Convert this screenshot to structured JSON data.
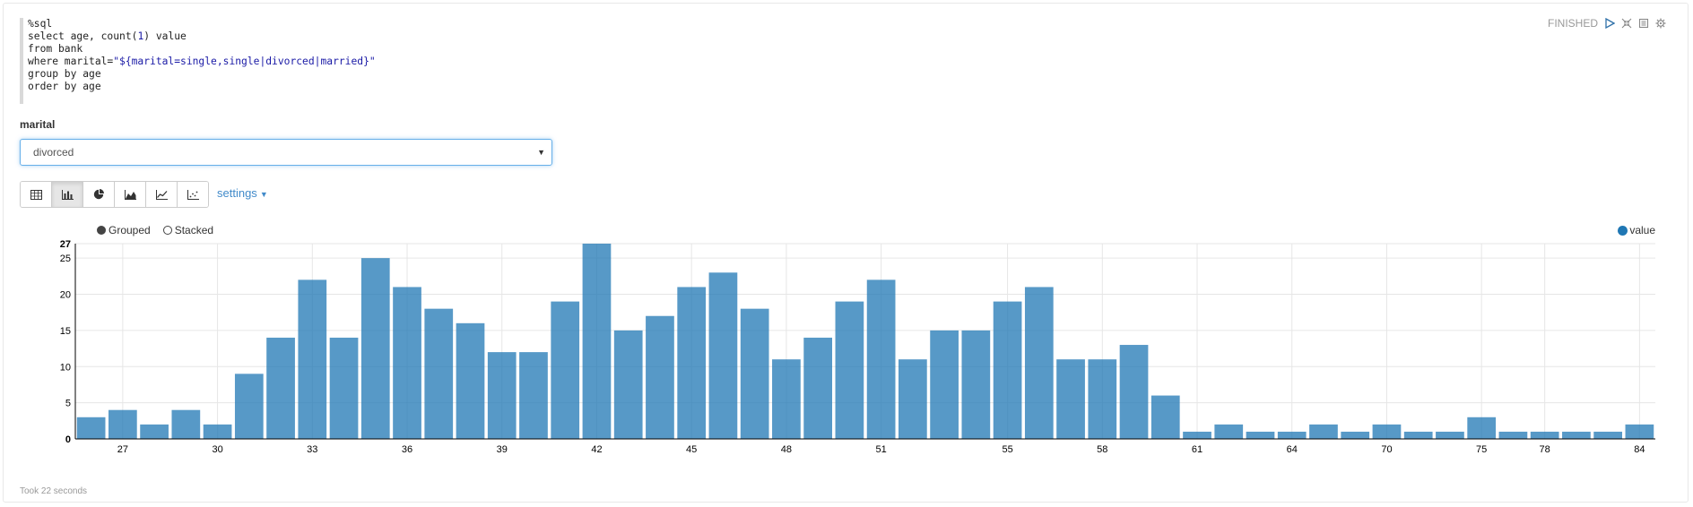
{
  "status": {
    "text": "FINISHED"
  },
  "editor": {
    "lines": [
      [
        {
          "t": "%sql",
          "c": ""
        }
      ],
      [
        {
          "t": "select age, count(",
          "c": ""
        },
        {
          "t": "1",
          "c": "code-num"
        },
        {
          "t": ") value",
          "c": ""
        }
      ],
      [
        {
          "t": "from bank",
          "c": ""
        }
      ],
      [
        {
          "t": "where marital=",
          "c": ""
        },
        {
          "t": "\"${marital=single,single|divorced|married}\"",
          "c": "code-str"
        }
      ],
      [
        {
          "t": "group by age",
          "c": ""
        }
      ],
      [
        {
          "t": "order by age",
          "c": ""
        }
      ]
    ]
  },
  "form": {
    "label": "marital",
    "selected": "divorced"
  },
  "toolbar": {
    "buttons": [
      {
        "name": "table-view-button",
        "icon": "table-icon"
      },
      {
        "name": "bar-chart-button",
        "icon": "bar-chart-icon",
        "active": true
      },
      {
        "name": "pie-chart-button",
        "icon": "pie-chart-icon"
      },
      {
        "name": "area-chart-button",
        "icon": "area-chart-icon"
      },
      {
        "name": "line-chart-button",
        "icon": "line-chart-icon"
      },
      {
        "name": "scatter-chart-button",
        "icon": "scatter-chart-icon"
      }
    ],
    "settings_label": "settings"
  },
  "legend": {
    "grouped": "Grouped",
    "stacked": "Stacked",
    "series": "value"
  },
  "footer": {
    "text": "Took 22 seconds"
  },
  "colors": {
    "bar": "#1f77b4",
    "accent": "#428bca"
  },
  "chart_data": {
    "type": "bar",
    "x": [
      26,
      27,
      28,
      29,
      30,
      31,
      32,
      33,
      34,
      35,
      36,
      37,
      38,
      39,
      40,
      41,
      42,
      43,
      44,
      45,
      46,
      47,
      48,
      49,
      50,
      51,
      52,
      53,
      54,
      55,
      56,
      57,
      58,
      59,
      60,
      61,
      62,
      63,
      64,
      65,
      68,
      70,
      72,
      73,
      75,
      77,
      78,
      80,
      82,
      84
    ],
    "values": [
      3,
      4,
      2,
      4,
      2,
      9,
      14,
      22,
      14,
      25,
      21,
      18,
      16,
      12,
      12,
      19,
      27,
      15,
      17,
      21,
      23,
      18,
      11,
      14,
      19,
      22,
      11,
      15,
      15,
      19,
      21,
      11,
      11,
      13,
      6,
      1,
      2,
      1,
      1,
      2,
      1,
      2,
      1,
      1,
      3,
      1,
      1,
      1,
      1,
      2
    ],
    "x_tick_labels": [
      "27",
      "30",
      "33",
      "36",
      "39",
      "42",
      "45",
      "48",
      "51",
      "55",
      "58",
      "61",
      "64",
      "70",
      "75",
      "78",
      "84"
    ],
    "y_ticks": [
      0,
      5,
      10,
      15,
      20,
      25,
      27
    ],
    "ylim": [
      0,
      27
    ],
    "series": [
      {
        "name": "value",
        "values": [
          3,
          4,
          2,
          4,
          2,
          9,
          14,
          22,
          14,
          25,
          21,
          18,
          16,
          12,
          12,
          19,
          27,
          15,
          17,
          21,
          23,
          18,
          11,
          14,
          19,
          22,
          11,
          15,
          15,
          19,
          21,
          11,
          11,
          13,
          6,
          1,
          2,
          1,
          1,
          2,
          1,
          2,
          1,
          1,
          3,
          1,
          1,
          1,
          1,
          2
        ]
      }
    ],
    "grid": true,
    "legend_position": "top-right"
  }
}
